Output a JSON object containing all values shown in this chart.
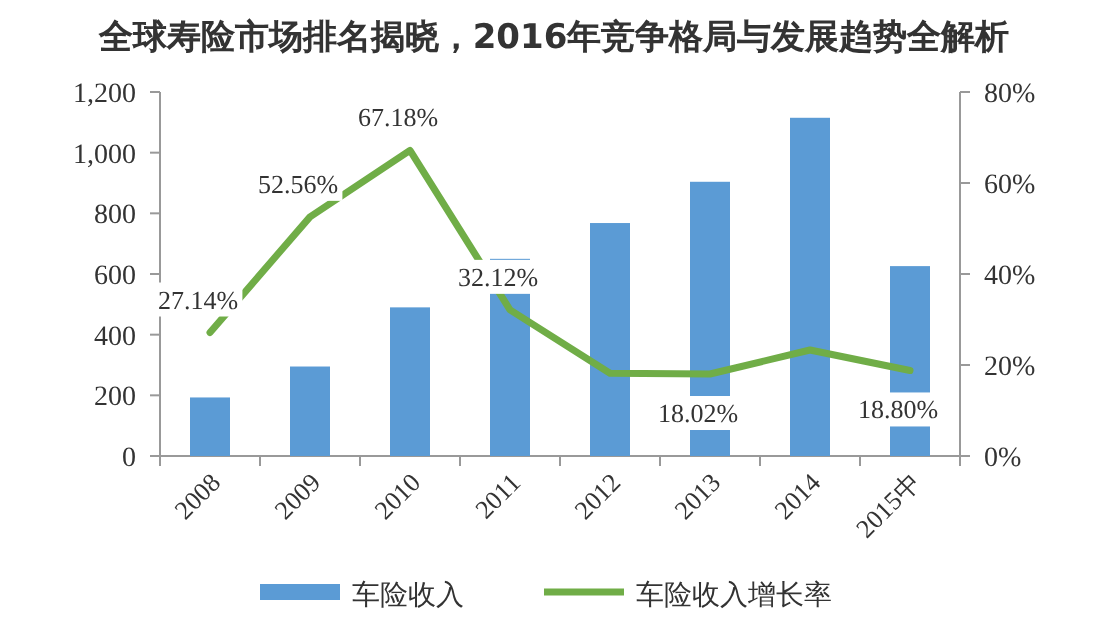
{
  "chart_data": {
    "type": "bar",
    "title": "全球寿险市场排名揭晓，2016年竞争格局与发展趋势全解析",
    "categories": [
      "2008",
      "2009",
      "2010",
      "2011",
      "2012",
      "2013",
      "2014",
      "2015中"
    ],
    "series": [
      {
        "name": "车险收入",
        "color": "#5b9bd5",
        "values": [
          193,
          295,
          490,
          650,
          768,
          904,
          1115,
          626
        ]
      },
      {
        "name": "车险收入增长率",
        "type": "line",
        "axis": "y2",
        "color": "#70ad47",
        "values": [
          27.14,
          52.56,
          67.18,
          32.12,
          18.2,
          18.02,
          23.3,
          18.8
        ],
        "value_labels": [
          "27.14%",
          "52.56%",
          "67.18%",
          "32.12%",
          null,
          "18.02%",
          null,
          "18.80%"
        ]
      }
    ],
    "ylim": [
      0,
      1200
    ],
    "yticks": [
      0,
      200,
      400,
      600,
      800,
      {
        "value": 1000,
        "label": "1,000"
      },
      {
        "value": 1200,
        "label": "1,200"
      }
    ],
    "y2lim": [
      0,
      80
    ],
    "y2ticks": [
      {
        "value": 0,
        "label": "0%"
      },
      {
        "value": 20,
        "label": "20%"
      },
      {
        "value": 40,
        "label": "40%"
      },
      {
        "value": 60,
        "label": "60%"
      },
      {
        "value": 80,
        "label": "80%"
      }
    ],
    "legend": "bottom",
    "marker": "none",
    "line_style": "solid",
    "grid": false
  }
}
